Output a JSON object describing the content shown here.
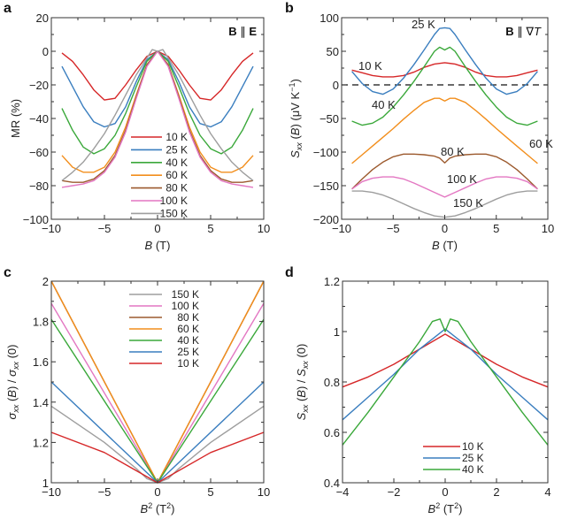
{
  "colors": {
    "10 K": "#d62728",
    "25 K": "#3a7ebf",
    "40 K": "#3aa83a",
    "60 K": "#f28e1c",
    "80 K": "#9c5a2e",
    "100 K": "#e377c2",
    "150 K": "#9e9e9e"
  },
  "chart_data": [
    {
      "panel": "a",
      "type": "line",
      "title": "",
      "annotation": "B ∥ E",
      "xlabel": "B (T)",
      "ylabel": "MR (%)",
      "xlim": [
        -10,
        10
      ],
      "ylim": [
        -100,
        20
      ],
      "xticks": [
        -10,
        -5,
        0,
        5,
        10
      ],
      "yticks": [
        -100,
        -80,
        -60,
        -40,
        -20,
        0,
        20
      ],
      "legend": "center",
      "series": [
        {
          "name": "10 K",
          "x": [
            -9,
            -8,
            -7,
            -6,
            -5,
            -4,
            -3,
            -2,
            -1,
            0,
            1,
            2,
            3,
            4,
            5,
            6,
            7,
            8,
            9
          ],
          "y": [
            -1,
            -6,
            -14,
            -23,
            -29,
            -28,
            -20,
            -11,
            -3,
            0,
            -3,
            -11,
            -20,
            -28,
            -29,
            -23,
            -14,
            -6,
            -1
          ]
        },
        {
          "name": "25 K",
          "x": [
            -9,
            -8,
            -7,
            -6,
            -5,
            -4,
            -3,
            -2,
            -1,
            0,
            1,
            2,
            3,
            4,
            5,
            6,
            7,
            8,
            9
          ],
          "y": [
            -9,
            -21,
            -33,
            -42,
            -45,
            -43,
            -33,
            -18,
            -5,
            0,
            -5,
            -18,
            -33,
            -43,
            -45,
            -42,
            -33,
            -21,
            -9
          ]
        },
        {
          "name": "40 K",
          "x": [
            -9,
            -8,
            -7,
            -6,
            -5,
            -4,
            -3,
            -2,
            -1,
            0,
            1,
            2,
            3,
            4,
            5,
            6,
            7,
            8,
            9
          ],
          "y": [
            -34,
            -47,
            -57,
            -61,
            -58,
            -50,
            -37,
            -21,
            -6,
            0,
            -6,
            -21,
            -37,
            -50,
            -58,
            -61,
            -57,
            -47,
            -34
          ]
        },
        {
          "name": "60 K",
          "x": [
            -9,
            -8,
            -7,
            -6,
            -5,
            -4,
            -3,
            -2,
            -1,
            0,
            1,
            2,
            3,
            4,
            5,
            6,
            7,
            8,
            9
          ],
          "y": [
            -62,
            -69,
            -72,
            -72,
            -69,
            -60,
            -45,
            -26,
            -8,
            0,
            -8,
            -26,
            -45,
            -60,
            -69,
            -72,
            -72,
            -69,
            -62
          ]
        },
        {
          "name": "80 K",
          "x": [
            -9,
            -8,
            -7,
            -6,
            -5,
            -4,
            -3,
            -2,
            -1,
            0,
            1,
            2,
            3,
            4,
            5,
            6,
            7,
            8,
            9
          ],
          "y": [
            -77,
            -78,
            -78,
            -76,
            -71,
            -62,
            -47,
            -27,
            -8,
            0,
            -8,
            -27,
            -47,
            -62,
            -71,
            -76,
            -78,
            -78,
            -77
          ]
        },
        {
          "name": "100 K",
          "x": [
            -9,
            -8,
            -7,
            -6,
            -5,
            -4,
            -3,
            -2,
            -1,
            0,
            1,
            2,
            3,
            4,
            5,
            6,
            7,
            8,
            9
          ],
          "y": [
            -81,
            -80,
            -79,
            -77,
            -72,
            -63,
            -48,
            -28,
            -9,
            0,
            -9,
            -28,
            -48,
            -63,
            -72,
            -77,
            -79,
            -80,
            -81
          ]
        },
        {
          "name": "150 K",
          "x": [
            -9,
            -8,
            -7,
            -6,
            -5,
            -4,
            -3,
            -2,
            -1,
            -0.5,
            0,
            0.5,
            1,
            2,
            3,
            4,
            5,
            6,
            7,
            8,
            9
          ],
          "y": [
            -77,
            -72,
            -66,
            -58,
            -49,
            -38,
            -26,
            -14,
            -4,
            1,
            0,
            1,
            -4,
            -14,
            -26,
            -38,
            -49,
            -58,
            -66,
            -72,
            -77
          ]
        }
      ]
    },
    {
      "panel": "b",
      "type": "line",
      "title": "",
      "annotation": "B ∥ ∇T",
      "xlabel": "B (T)",
      "ylabel": "Sxx (B) (μV K⁻¹)",
      "xlim": [
        -10,
        10
      ],
      "ylim": [
        -200,
        100
      ],
      "xticks": [
        -10,
        -5,
        0,
        5,
        10
      ],
      "yticks": [
        -200,
        -150,
        -100,
        -50,
        0,
        50,
        100
      ],
      "reference_line": {
        "y": 0,
        "style": "dashed"
      },
      "series_labels": [
        "10 K",
        "25 K",
        "40 K",
        "60 K",
        "80 K",
        "100 K",
        "150 K"
      ],
      "series": [
        {
          "name": "10 K",
          "x": [
            -9,
            -8,
            -7,
            -6,
            -5,
            -4,
            -3,
            -2,
            -1,
            0,
            1,
            2,
            3,
            4,
            5,
            6,
            7,
            8,
            9
          ],
          "y": [
            22,
            18,
            14,
            12,
            12,
            14,
            19,
            26,
            31,
            33,
            31,
            26,
            19,
            14,
            12,
            12,
            14,
            18,
            22
          ]
        },
        {
          "name": "25 K",
          "x": [
            -9,
            -8,
            -7,
            -6,
            -5,
            -4,
            -3,
            -2,
            -1,
            -0.5,
            0,
            0.5,
            1,
            2,
            3,
            4,
            5,
            6,
            7,
            8,
            9
          ],
          "y": [
            20,
            2,
            -10,
            -14,
            -6,
            10,
            30,
            52,
            75,
            84,
            85,
            84,
            75,
            52,
            30,
            10,
            -6,
            -14,
            -10,
            2,
            20
          ]
        },
        {
          "name": "40 K",
          "x": [
            -9,
            -8,
            -7,
            -6,
            -5,
            -4,
            -3,
            -2,
            -1,
            -0.5,
            0,
            0.5,
            1,
            2,
            3,
            4,
            5,
            6,
            7,
            8,
            9
          ],
          "y": [
            -54,
            -60,
            -57,
            -48,
            -33,
            -15,
            5,
            27,
            50,
            56,
            52,
            56,
            50,
            27,
            5,
            -15,
            -33,
            -48,
            -57,
            -60,
            -54
          ]
        },
        {
          "name": "60 K",
          "x": [
            -9,
            -8,
            -7,
            -6,
            -5,
            -4,
            -3,
            -2,
            -1,
            -0.5,
            0,
            0.5,
            1,
            2,
            3,
            4,
            5,
            6,
            7,
            8,
            9
          ],
          "y": [
            -117,
            -104,
            -91,
            -78,
            -65,
            -51,
            -38,
            -26,
            -20,
            -20,
            -24,
            -20,
            -20,
            -26,
            -38,
            -51,
            -65,
            -78,
            -91,
            -104,
            -117
          ]
        },
        {
          "name": "80 K",
          "x": [
            -9,
            -8,
            -7,
            -6,
            -5,
            -4,
            -3,
            -2,
            -1,
            -0.5,
            0,
            0.5,
            1,
            2,
            3,
            4,
            5,
            6,
            7,
            8,
            9
          ],
          "y": [
            -155,
            -140,
            -126,
            -115,
            -107,
            -103,
            -103,
            -104,
            -106,
            -109,
            -116,
            -109,
            -106,
            -104,
            -103,
            -103,
            -107,
            -115,
            -126,
            -140,
            -155
          ]
        },
        {
          "name": "100 K",
          "x": [
            -9,
            -8,
            -7,
            -6,
            -5,
            -4,
            -3,
            -2,
            -1,
            0,
            1,
            2,
            3,
            4,
            5,
            6,
            7,
            8,
            9
          ],
          "y": [
            -155,
            -144,
            -139,
            -137,
            -137,
            -140,
            -146,
            -153,
            -160,
            -167,
            -160,
            -153,
            -146,
            -140,
            -137,
            -137,
            -139,
            -144,
            -155
          ]
        },
        {
          "name": "150 K",
          "x": [
            -9,
            -8,
            -7,
            -6,
            -5,
            -4,
            -3,
            -2,
            -1,
            0,
            1,
            2,
            3,
            4,
            5,
            6,
            7,
            8,
            9
          ],
          "y": [
            -158,
            -158,
            -160,
            -164,
            -170,
            -177,
            -184,
            -190,
            -195,
            -197,
            -195,
            -190,
            -184,
            -177,
            -170,
            -164,
            -160,
            -158,
            -158
          ]
        }
      ]
    },
    {
      "panel": "c",
      "type": "line",
      "title": "",
      "xlabel": "B² (T²)",
      "ylabel": "σxx (B) / σxx (0)",
      "xlim": [
        -10,
        10
      ],
      "ylim": [
        1,
        2
      ],
      "xticks": [
        -10,
        -5,
        0,
        5,
        10
      ],
      "yticks": [
        1,
        1.2,
        1.4,
        1.6,
        1.8,
        2
      ],
      "legend": "top-center",
      "series": [
        {
          "name": "150 K",
          "x": [
            -10,
            -5,
            -2,
            -1,
            0,
            1,
            2,
            5,
            10
          ],
          "y": [
            1.38,
            1.2,
            1.07,
            1.02,
            1,
            1.02,
            1.07,
            1.2,
            1.38
          ]
        },
        {
          "name": "100 K",
          "x": [
            -10,
            0,
            10
          ],
          "y": [
            1.89,
            1,
            1.89
          ]
        },
        {
          "name": "80 K",
          "x": [
            -10,
            0,
            10
          ],
          "y": [
            2.0,
            1,
            2.0
          ]
        },
        {
          "name": "60 K",
          "x": [
            -10,
            0,
            10
          ],
          "y": [
            2.0,
            1,
            2.0
          ]
        },
        {
          "name": "40 K",
          "x": [
            -10,
            0,
            10
          ],
          "y": [
            1.81,
            1,
            1.81
          ]
        },
        {
          "name": "25 K",
          "x": [
            -10,
            0,
            10
          ],
          "y": [
            1.5,
            1,
            1.5
          ]
        },
        {
          "name": "10 K",
          "x": [
            -10,
            -5,
            0,
            5,
            10
          ],
          "y": [
            1.25,
            1.15,
            1,
            1.15,
            1.25
          ]
        }
      ]
    },
    {
      "panel": "d",
      "type": "line",
      "title": "",
      "xlabel": "B² (T²)",
      "ylabel": "Sxx (B) / Sxx (0)",
      "xlim": [
        -4,
        4
      ],
      "ylim": [
        0.4,
        1.2
      ],
      "xticks": [
        -4,
        -2,
        0,
        2,
        4
      ],
      "yticks": [
        0.4,
        0.6,
        0.8,
        1,
        1.2
      ],
      "legend": "bottom-center",
      "series": [
        {
          "name": "10 K",
          "x": [
            -4,
            -3,
            -2,
            -1,
            0,
            1,
            2,
            3,
            4
          ],
          "y": [
            0.78,
            0.82,
            0.87,
            0.93,
            0.99,
            0.93,
            0.87,
            0.82,
            0.78
          ]
        },
        {
          "name": "25 K",
          "x": [
            -4,
            -3,
            -2,
            -1,
            0,
            1,
            2,
            3,
            4
          ],
          "y": [
            0.65,
            0.74,
            0.83,
            0.93,
            1.01,
            0.93,
            0.83,
            0.74,
            0.65
          ]
        },
        {
          "name": "40 K",
          "x": [
            -4,
            -3,
            -2,
            -1,
            -0.5,
            -0.2,
            0,
            0.2,
            0.5,
            1,
            2,
            3,
            4
          ],
          "y": [
            0.55,
            0.68,
            0.82,
            0.96,
            1.04,
            1.05,
            1.0,
            1.05,
            1.04,
            0.96,
            0.82,
            0.68,
            0.55
          ]
        }
      ]
    }
  ]
}
